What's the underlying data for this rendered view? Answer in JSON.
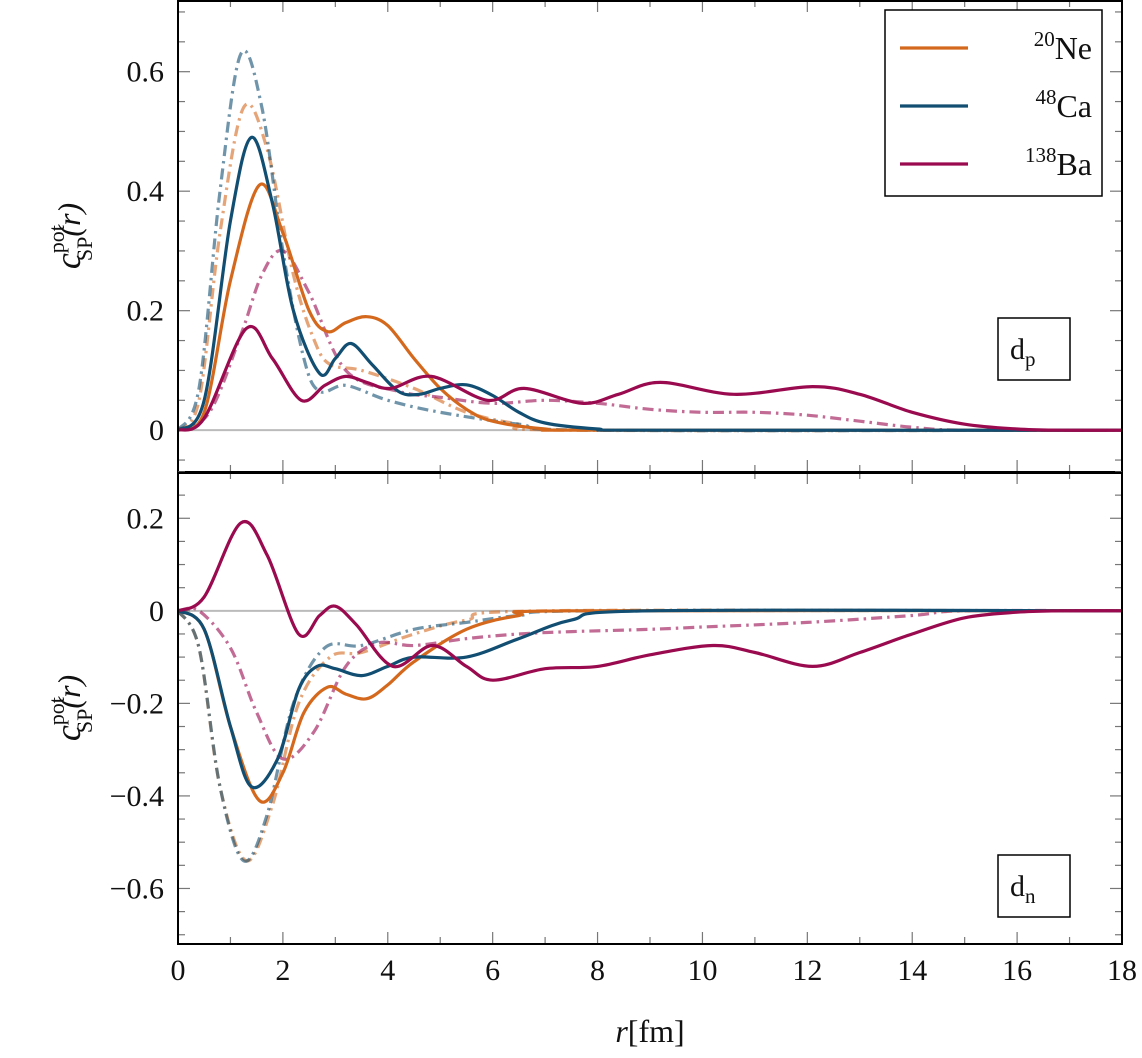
{
  "chart_data": {
    "type": "line",
    "xlabel": {
      "var": "r",
      "unit": "[fm]"
    },
    "xlim": [
      0,
      18
    ],
    "xticks": [
      0,
      2,
      4,
      6,
      8,
      10,
      12,
      14,
      16,
      18
    ],
    "legend": {
      "placement": "top-right",
      "entries": [
        {
          "mass": "20",
          "element": "Ne",
          "color": "#D4691E"
        },
        {
          "mass": "48",
          "element": "Ca",
          "color": "#114E72"
        },
        {
          "mass": "138",
          "element": "Ba",
          "color": "#9A0A4F"
        }
      ]
    },
    "ylabel": {
      "base": "c",
      "sup": "pot",
      "sub": "SP",
      "arg": "(r)"
    },
    "panels": [
      {
        "label": {
          "base": "d",
          "sub": "p"
        },
        "ylim": [
          -0.07,
          0.72
        ],
        "yticks": [
          0,
          0.2,
          0.4,
          0.6
        ],
        "ytick_labels": [
          "0",
          "0.2",
          "0.4",
          "0.6"
        ],
        "series": [
          {
            "name": "Ne",
            "style": "dashdot",
            "x": [
              0,
              0.4,
              0.8,
              1.25,
              1.7,
              2.2,
              2.6,
              2.9,
              3.5,
              4.5,
              5.5,
              6.5,
              7.5,
              18
            ],
            "y": [
              0,
              0.05,
              0.33,
              0.54,
              0.47,
              0.26,
              0.15,
              0.11,
              0.1,
              0.07,
              0.03,
              0.01,
              0,
              0
            ]
          },
          {
            "name": "Ca",
            "style": "dashdot",
            "x": [
              0,
              0.4,
              0.8,
              1.2,
              1.6,
              2.0,
              2.4,
              2.7,
              3.2,
              4.0,
              5.0,
              6.5,
              8,
              18
            ],
            "y": [
              0,
              0.07,
              0.4,
              0.63,
              0.54,
              0.3,
              0.12,
              0.065,
              0.075,
              0.05,
              0.03,
              0.01,
              0,
              0
            ]
          },
          {
            "name": "Ba",
            "style": "dashdot",
            "x": [
              0,
              0.6,
              1.2,
              1.6,
              2.0,
              2.5,
              3.2,
              4.2,
              5,
              6,
              7,
              8,
              9,
              10,
              11,
              12,
              13,
              14,
              15,
              18
            ],
            "y": [
              0,
              0.03,
              0.16,
              0.26,
              0.3,
              0.23,
              0.1,
              0.065,
              0.055,
              0.045,
              0.05,
              0.045,
              0.035,
              0.03,
              0.03,
              0.025,
              0.015,
              0.005,
              0,
              0
            ]
          },
          {
            "name": "Ne",
            "style": "solid",
            "x": [
              0,
              0.5,
              1.0,
              1.55,
              2.0,
              2.5,
              2.85,
              3.2,
              3.6,
              4.0,
              4.5,
              5,
              5.5,
              6,
              7,
              8,
              18
            ],
            "y": [
              0,
              0.03,
              0.25,
              0.41,
              0.33,
              0.2,
              0.165,
              0.18,
              0.19,
              0.175,
              0.12,
              0.07,
              0.035,
              0.015,
              0.002,
              0,
              0
            ]
          },
          {
            "name": "Ca",
            "style": "solid",
            "x": [
              0,
              0.5,
              1.0,
              1.4,
              1.8,
              2.2,
              2.7,
              3.0,
              3.3,
              3.7,
              4.2,
              4.6,
              5.0,
              5.5,
              6.0,
              6.5,
              7,
              8,
              9,
              18
            ],
            "y": [
              0,
              0.05,
              0.35,
              0.49,
              0.38,
              0.2,
              0.095,
              0.12,
              0.145,
              0.11,
              0.065,
              0.06,
              0.07,
              0.076,
              0.058,
              0.03,
              0.012,
              0.002,
              0,
              0
            ]
          },
          {
            "name": "Ba",
            "style": "solid",
            "x": [
              0,
              0.5,
              1.3,
              1.8,
              2.35,
              2.8,
              3.2,
              3.6,
              4.06,
              4.83,
              5.9,
              6.6,
              7.7,
              8.4,
              9.2,
              10.6,
              12.1,
              13,
              14,
              15,
              16,
              16.8,
              18
            ],
            "y": [
              0,
              0.02,
              0.17,
              0.12,
              0.05,
              0.075,
              0.09,
              0.08,
              0.07,
              0.09,
              0.05,
              0.07,
              0.045,
              0.06,
              0.08,
              0.06,
              0.073,
              0.06,
              0.03,
              0.01,
              0.002,
              0,
              0
            ]
          }
        ]
      },
      {
        "label": {
          "base": "d",
          "sub": "n"
        },
        "ylim": [
          -0.72,
          0.3
        ],
        "yticks": [
          -0.6,
          -0.4,
          -0.2,
          0,
          0.2
        ],
        "ytick_labels": [
          "−0.6",
          "−0.4",
          "−0.2",
          "0",
          "0.2"
        ],
        "series": [
          {
            "name": "Ne",
            "style": "dashdot",
            "x": [
              0,
              0.4,
              0.8,
              1.3,
              1.8,
              2.3,
              2.9,
              3.5,
              4.5,
              5.5,
              7,
              18
            ],
            "y": [
              0,
              -0.08,
              -0.38,
              -0.54,
              -0.42,
              -0.2,
              -0.1,
              -0.09,
              -0.05,
              -0.02,
              0,
              0
            ]
          },
          {
            "name": "Ca",
            "style": "dashdot",
            "x": [
              0,
              0.4,
              0.8,
              1.25,
              1.7,
              2.2,
              2.8,
              3.5,
              4.5,
              5.5,
              6.5,
              8,
              18
            ],
            "y": [
              0,
              -0.08,
              -0.38,
              -0.54,
              -0.44,
              -0.2,
              -0.08,
              -0.075,
              -0.04,
              -0.025,
              -0.01,
              0,
              0
            ]
          },
          {
            "name": "Ba",
            "style": "dashdot",
            "x": [
              0,
              0.4,
              1.0,
              1.5,
              2.0,
              2.6,
              3.2,
              3.8,
              4.5,
              5.5,
              6.5,
              7.5,
              9,
              10,
              12,
              14,
              15,
              18
            ],
            "y": [
              0,
              0,
              -0.08,
              -0.22,
              -0.32,
              -0.26,
              -0.12,
              -0.07,
              -0.075,
              -0.06,
              -0.05,
              -0.045,
              -0.04,
              -0.035,
              -0.025,
              -0.01,
              0,
              0
            ]
          },
          {
            "name": "Ne",
            "style": "solid",
            "x": [
              0,
              0.5,
              1.0,
              1.55,
              2.0,
              2.4,
              2.85,
              3.2,
              3.6,
              4.0,
              4.5,
              5.5,
              6.5,
              7.5,
              18
            ],
            "y": [
              0,
              -0.04,
              -0.25,
              -0.41,
              -0.35,
              -0.22,
              -0.165,
              -0.18,
              -0.19,
              -0.16,
              -0.11,
              -0.04,
              -0.01,
              0,
              0
            ]
          },
          {
            "name": "Ca",
            "style": "solid",
            "x": [
              0,
              0.5,
              1.0,
              1.4,
              1.9,
              2.3,
              2.65,
              3.0,
              3.5,
              4.0,
              4.5,
              5.5,
              6.5,
              7.5,
              9,
              18
            ],
            "y": [
              0,
              -0.04,
              -0.25,
              -0.38,
              -0.32,
              -0.17,
              -0.12,
              -0.125,
              -0.14,
              -0.12,
              -0.1,
              -0.1,
              -0.06,
              -0.02,
              0,
              0
            ]
          },
          {
            "name": "Ba",
            "style": "solid",
            "x": [
              0,
              0.5,
              1.2,
              1.7,
              2.3,
              2.7,
              3.0,
              3.4,
              4.1,
              4.85,
              5.5,
              6.0,
              7,
              8,
              9,
              10.2,
              11,
              12.1,
              13,
              14,
              15,
              16,
              16.8,
              18
            ],
            "y": [
              0,
              0.03,
              0.19,
              0.12,
              -0.05,
              -0.01,
              0.01,
              -0.03,
              -0.12,
              -0.075,
              -0.12,
              -0.15,
              -0.125,
              -0.12,
              -0.095,
              -0.075,
              -0.09,
              -0.12,
              -0.09,
              -0.05,
              -0.015,
              -0.003,
              0,
              0
            ]
          }
        ]
      }
    ]
  }
}
